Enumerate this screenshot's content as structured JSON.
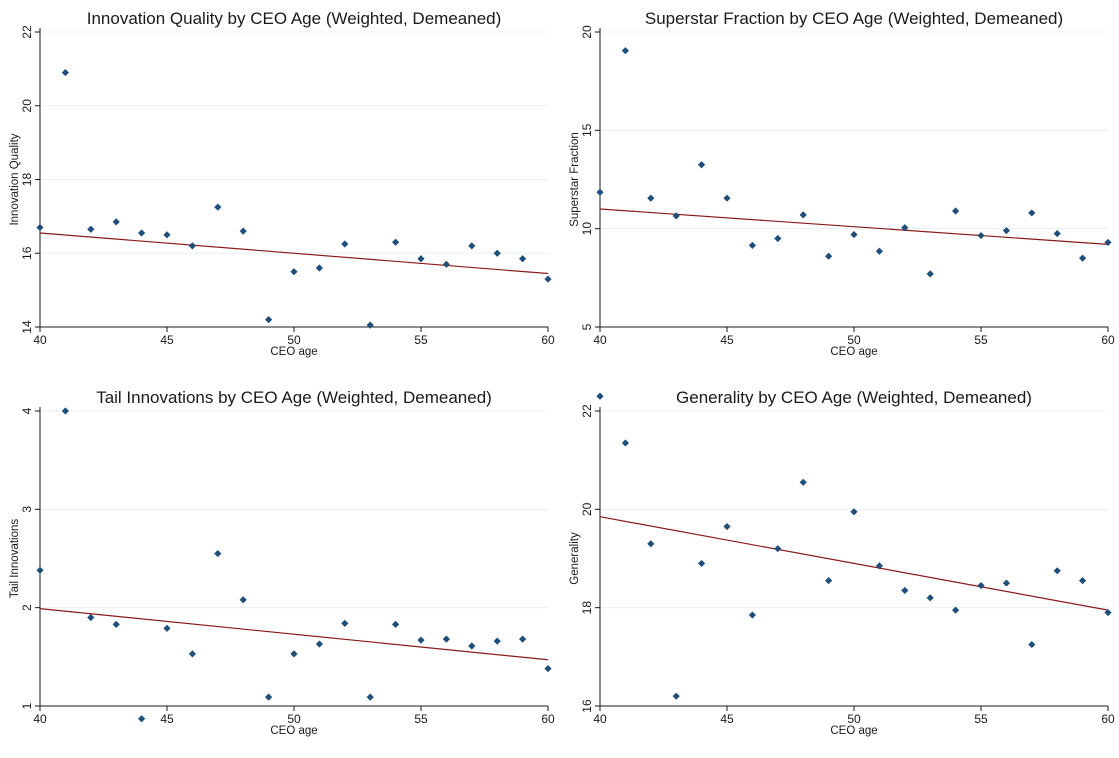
{
  "chart_data": [
    {
      "type": "scatter",
      "title": "Innovation Quality by CEO Age (Weighted, Demeaned)",
      "xlabel": "CEO age",
      "ylabel": "Innovation Quality",
      "xlim": [
        40,
        60
      ],
      "ylim": [
        14,
        22
      ],
      "xticks": [
        40,
        45,
        50,
        55,
        60
      ],
      "yticks": [
        14,
        16,
        18,
        20,
        22
      ],
      "grid": true,
      "x": [
        40,
        41,
        42,
        43,
        44,
        45,
        46,
        47,
        48,
        49,
        50,
        51,
        52,
        53,
        54,
        55,
        56,
        57,
        58,
        59,
        60
      ],
      "values": [
        16.7,
        20.9,
        16.65,
        16.85,
        16.55,
        16.5,
        16.2,
        17.25,
        16.6,
        14.2,
        15.5,
        15.6,
        16.25,
        14.05,
        16.3,
        15.85,
        15.7,
        16.2,
        16.0,
        15.85,
        15.3
      ],
      "fit_line": {
        "x": [
          40,
          60
        ],
        "y": [
          16.55,
          15.45
        ]
      },
      "colors": {
        "points": "#1f4e79",
        "fit": "#8b1a1a",
        "grid": "#eaf0f3"
      }
    },
    {
      "type": "scatter",
      "title": "Superstar Fraction by CEO Age (Weighted, Demeaned)",
      "xlabel": "CEO age",
      "ylabel": "Superstar Fraction",
      "xlim": [
        40,
        60
      ],
      "ylim": [
        5,
        20
      ],
      "xticks": [
        40,
        45,
        50,
        55,
        60
      ],
      "yticks": [
        5,
        10,
        15,
        20
      ],
      "grid": true,
      "x": [
        40,
        41,
        42,
        43,
        44,
        45,
        46,
        47,
        48,
        49,
        50,
        51,
        52,
        53,
        54,
        55,
        56,
        57,
        58,
        59,
        60
      ],
      "values": [
        11.85,
        19.05,
        11.55,
        10.65,
        13.25,
        11.55,
        9.15,
        9.5,
        10.7,
        8.6,
        9.7,
        8.85,
        10.05,
        7.7,
        10.9,
        9.65,
        9.9,
        10.8,
        9.75,
        8.5,
        9.3
      ],
      "fit_line": {
        "x": [
          40,
          60
        ],
        "y": [
          11.0,
          9.2
        ]
      },
      "colors": {
        "points": "#1f4e79",
        "fit": "#8b1a1a",
        "grid": "#eaf0f3"
      }
    },
    {
      "type": "scatter",
      "title": "Tail Innovations by CEO Age (Weighted, Demeaned)",
      "xlabel": "CEO age",
      "ylabel": "Tail Innovations",
      "xlim": [
        40,
        60
      ],
      "ylim": [
        1,
        4
      ],
      "xticks": [
        40,
        45,
        50,
        55,
        60
      ],
      "yticks": [
        1,
        2,
        3,
        4
      ],
      "grid": true,
      "x": [
        40,
        41,
        42,
        43,
        44,
        45,
        46,
        47,
        48,
        49,
        50,
        51,
        52,
        53,
        54,
        55,
        56,
        57,
        58,
        59,
        60
      ],
      "values": [
        2.38,
        4.0,
        1.9,
        1.83,
        0.87,
        1.79,
        1.53,
        2.55,
        2.08,
        1.09,
        1.53,
        1.63,
        1.84,
        1.09,
        1.83,
        1.67,
        1.68,
        1.61,
        1.66,
        1.68,
        1.38
      ],
      "fit_line": {
        "x": [
          40,
          60
        ],
        "y": [
          1.99,
          1.47
        ]
      },
      "colors": {
        "points": "#1f4e79",
        "fit": "#8b1a1a",
        "grid": "#eaf0f3"
      }
    },
    {
      "type": "scatter",
      "title": "Generality by CEO Age (Weighted, Demeaned)",
      "xlabel": "CEO age",
      "ylabel": "Generality",
      "xlim": [
        40,
        60
      ],
      "ylim": [
        16,
        22
      ],
      "xticks": [
        40,
        45,
        50,
        55,
        60
      ],
      "yticks": [
        16,
        18,
        20,
        22
      ],
      "grid": true,
      "x": [
        40,
        41,
        42,
        43,
        44,
        45,
        46,
        47,
        48,
        49,
        50,
        51,
        52,
        53,
        54,
        55,
        56,
        57,
        58,
        59,
        60
      ],
      "values": [
        22.3,
        21.35,
        19.3,
        16.2,
        18.9,
        19.65,
        17.85,
        19.2,
        20.55,
        18.55,
        19.95,
        18.85,
        18.35,
        18.2,
        17.95,
        18.45,
        18.5,
        17.25,
        18.75,
        18.55,
        17.9
      ],
      "fit_line": {
        "x": [
          40,
          60
        ],
        "y": [
          19.85,
          17.95
        ]
      },
      "colors": {
        "points": "#1f4e79",
        "fit": "#8b1a1a",
        "grid": "#eaf0f3"
      }
    }
  ]
}
